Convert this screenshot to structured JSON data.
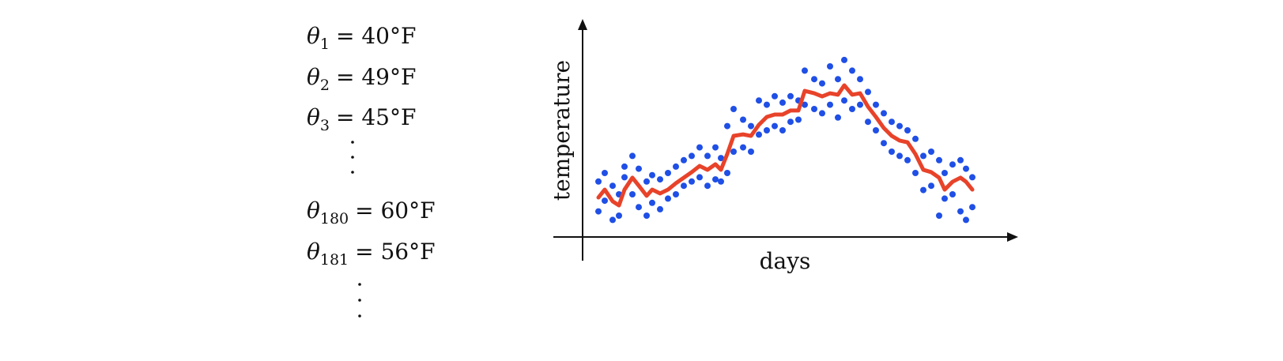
{
  "equations": [
    {
      "symbol": "θ",
      "subscript": "1",
      "value": "= 40°F"
    },
    {
      "symbol": "θ",
      "subscript": "2",
      "value": "= 49°F"
    },
    {
      "symbol": "θ",
      "subscript": "3",
      "value": "= 45°F"
    },
    {
      "symbol": "θ",
      "subscript": "180",
      "value": "= 60°F"
    },
    {
      "symbol": "θ",
      "subscript": "181",
      "value": "= 56°F"
    }
  ],
  "chart_data": {
    "type": "scatter",
    "x_label": "days",
    "y_label": "temperature",
    "xlim": [
      0,
      110
    ],
    "ylim": [
      0,
      100
    ],
    "series": [
      {
        "type": "scatter",
        "color": "#1f4fe6",
        "x": [
          4,
          4,
          5.6,
          5.6,
          7.6,
          7.6,
          9.2,
          9.2,
          10.6,
          10.6,
          12.6,
          12.6,
          14.2,
          14.2,
          16.2,
          16.2,
          17.6,
          17.6,
          19.6,
          19.6,
          21.6,
          21.6,
          23.6,
          23.6,
          25.6,
          25.6,
          27.6,
          27.6,
          29.6,
          29.6,
          31.6,
          31.6,
          33.6,
          33.6,
          35,
          35,
          36.6,
          36.6,
          38.2,
          38.2,
          40.6,
          40.6,
          42.6,
          42.6,
          44.6,
          44.6,
          46.6,
          46.6,
          48.6,
          48.6,
          50.6,
          50.6,
          52.6,
          52.6,
          54.6,
          54.6,
          56.2,
          56.2,
          58.6,
          58.6,
          60.6,
          60.6,
          62.6,
          62.6,
          64.6,
          64.6,
          66.2,
          66.2,
          68.2,
          68.2,
          70.2,
          70.2,
          72.2,
          72.2,
          74.2,
          74.2,
          76.2,
          76.2,
          78.2,
          78.2,
          80.2,
          80.2,
          82.2,
          82.2,
          84.2,
          84.2,
          86.2,
          86.2,
          88.2,
          88.2,
          90.2,
          90.2,
          91.6,
          91.6,
          93.6,
          93.6,
          95.6,
          95.6,
          97,
          97,
          98.6,
          98.6
        ],
        "values": [
          26,
          12,
          30,
          17,
          24,
          8,
          10,
          20,
          33,
          28,
          38,
          20,
          32,
          14,
          26,
          10,
          29,
          16,
          27,
          13,
          30,
          18,
          33,
          20,
          36,
          24,
          38,
          26,
          42,
          28,
          38,
          24,
          42,
          27,
          26,
          37,
          52,
          30,
          60,
          40,
          55,
          42,
          52,
          40,
          64,
          48,
          62,
          50,
          66,
          52,
          63,
          50,
          66,
          54,
          64,
          55,
          78,
          62,
          74,
          60,
          72,
          58,
          80,
          62,
          74,
          56,
          83,
          64,
          78,
          60,
          74,
          62,
          68,
          54,
          62,
          50,
          58,
          44,
          54,
          40,
          52,
          38,
          50,
          36,
          46,
          30,
          38,
          22,
          40,
          24,
          36,
          10,
          30,
          18,
          34,
          20,
          36,
          12,
          32,
          8,
          28,
          14
        ]
      },
      {
        "type": "line",
        "color": "#e8432a",
        "x": [
          4,
          5.6,
          7.6,
          9.2,
          10.6,
          12.6,
          14.2,
          16.2,
          17.6,
          19.6,
          21.6,
          23.6,
          25.6,
          27.6,
          29.6,
          31.6,
          33.6,
          35,
          36.6,
          38.2,
          40.6,
          42.6,
          44.6,
          46.6,
          48.6,
          50.6,
          52.6,
          54.6,
          56.2,
          58.6,
          60.6,
          62.6,
          64.6,
          66.2,
          68.2,
          70.2,
          72.2,
          74.2,
          76.2,
          78.2,
          80.2,
          82.2,
          84.2,
          86.2,
          88.2,
          90.2,
          91.6,
          93.6,
          95.6,
          97,
          98.6
        ],
        "values": [
          18.5,
          22.2,
          16.7,
          14.8,
          22.2,
          27.8,
          24.1,
          19.3,
          22.2,
          20.4,
          22.2,
          25.2,
          27.8,
          30.4,
          33.3,
          31.5,
          34.1,
          31.5,
          38.9,
          47.4,
          48.1,
          47.4,
          52.6,
          56.3,
          57.4,
          57.4,
          59.3,
          59.3,
          68.5,
          67.4,
          65.9,
          67.4,
          66.7,
          71.1,
          66.7,
          67.4,
          61.1,
          56.3,
          51.1,
          47.4,
          45.2,
          44.4,
          38.9,
          31.5,
          30.4,
          27.8,
          22.2,
          25.9,
          27.8,
          25.9,
          22.2
        ]
      }
    ]
  }
}
